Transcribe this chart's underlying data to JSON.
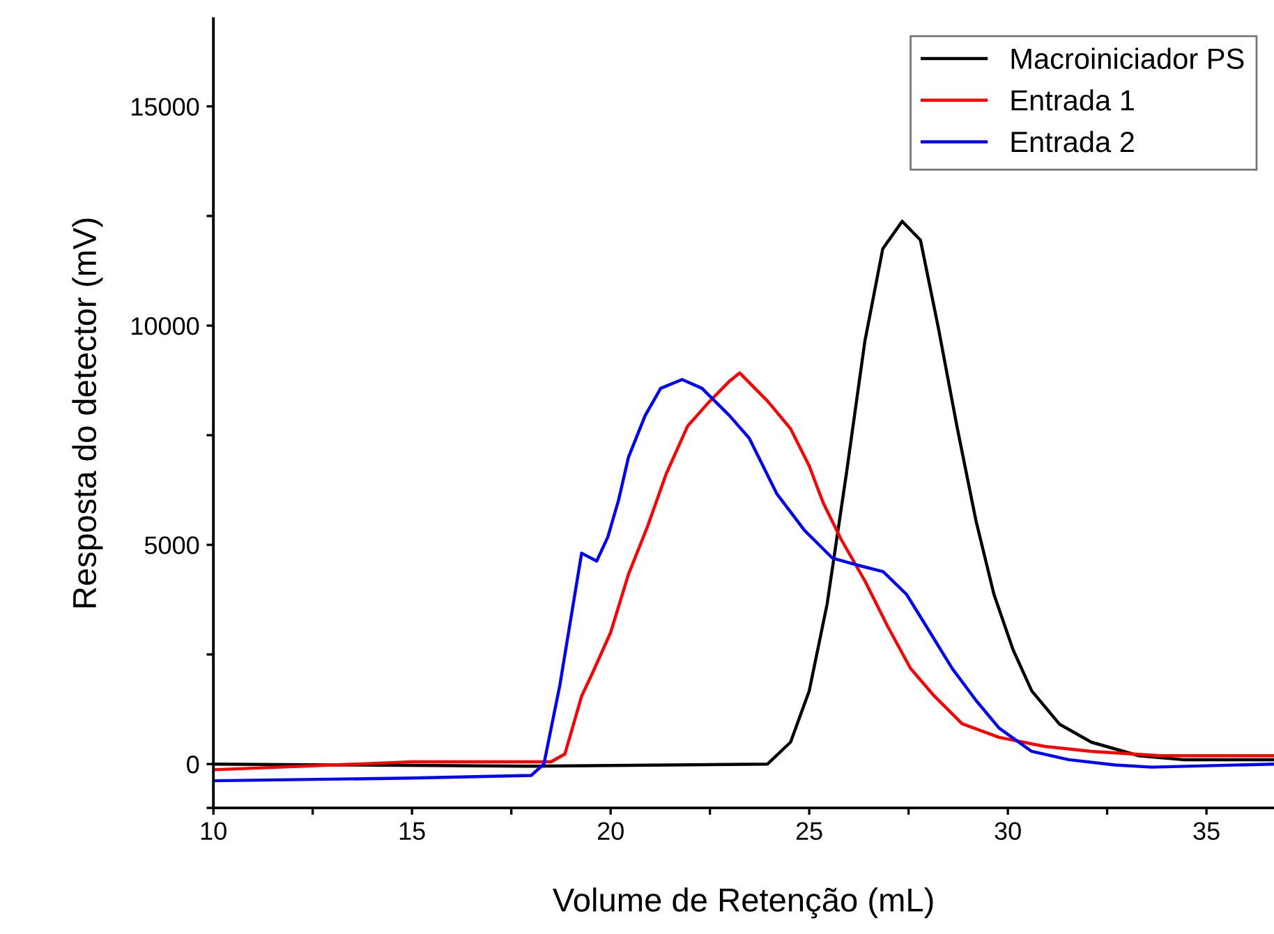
{
  "chart_data": {
    "type": "line",
    "xlabel": "Volume de Retenção (mL)",
    "ylabel": "Resposta do detector (mV)",
    "xlim": [
      10,
      36.7
    ],
    "ylim": [
      -1000,
      17000
    ],
    "xticks": [
      10,
      {
        "value": 12.5,
        "label": null
      },
      15,
      {
        "value": 17.5,
        "label": null
      },
      20,
      {
        "value": 22.5,
        "label": null
      },
      25,
      {
        "value": 27.5,
        "label": null
      },
      30,
      {
        "value": 32.5,
        "label": null
      },
      35
    ],
    "yticks": [
      {
        "value": -1000,
        "label": null
      },
      0,
      {
        "value": 2500,
        "label": null
      },
      5000,
      {
        "value": 7500,
        "label": null
      },
      10000,
      {
        "value": 12500,
        "label": null
      },
      15000
    ],
    "grid": false,
    "legend": "top right",
    "marker": "none",
    "line_style": "solid",
    "series": [
      {
        "name": "Macroiniciador PS",
        "color": "#000000",
        "x": [
          10,
          18,
          23.95,
          24.53,
          25.0,
          25.45,
          25.93,
          26.4,
          26.85,
          27.34,
          27.8,
          28.25,
          28.73,
          29.2,
          29.65,
          30.13,
          30.6,
          31.3,
          32.1,
          33.3,
          34.4,
          36.7
        ],
        "values": [
          0,
          -50,
          0,
          500,
          1670,
          3650,
          6590,
          9640,
          11750,
          12380,
          11950,
          9950,
          7650,
          5540,
          3870,
          2610,
          1670,
          910,
          500,
          190,
          100,
          100
        ]
      },
      {
        "name": "Entrada 1",
        "color": "#ff0000",
        "x": [
          10,
          15,
          18.5,
          18.85,
          19.27,
          19.53,
          20.0,
          20.45,
          20.93,
          21.4,
          21.94,
          22.47,
          23.0,
          23.25,
          23.95,
          24.53,
          25.0,
          25.35,
          25.8,
          26.4,
          26.98,
          27.55,
          28.15,
          28.85,
          29.78,
          30.94,
          32.1,
          33.85,
          36.7
        ],
        "values": [
          -130,
          50,
          50,
          230,
          1550,
          2050,
          3000,
          4330,
          5420,
          6620,
          7710,
          8250,
          8740,
          8920,
          8280,
          7650,
          6800,
          5960,
          5130,
          4180,
          3130,
          2180,
          1550,
          920,
          610,
          400,
          290,
          190,
          190
        ]
      },
      {
        "name": "Entrada 2",
        "color": "#0000ff",
        "x": [
          10,
          15,
          18,
          18.32,
          18.72,
          19.05,
          19.27,
          19.65,
          19.93,
          20.2,
          20.45,
          20.87,
          21.26,
          21.8,
          22.3,
          22.99,
          23.49,
          24.18,
          24.88,
          25.58,
          26.16,
          26.86,
          27.45,
          28.03,
          28.6,
          29.2,
          29.78,
          30.6,
          31.53,
          32.7,
          33.62,
          36.7
        ],
        "values": [
          -380,
          -320,
          -260,
          0,
          1790,
          3600,
          4810,
          4630,
          5180,
          6020,
          7000,
          7950,
          8570,
          8770,
          8570,
          7950,
          7430,
          6170,
          5330,
          4700,
          4550,
          4390,
          3870,
          3020,
          2180,
          1450,
          820,
          290,
          100,
          -20,
          -70,
          0
        ]
      }
    ]
  }
}
